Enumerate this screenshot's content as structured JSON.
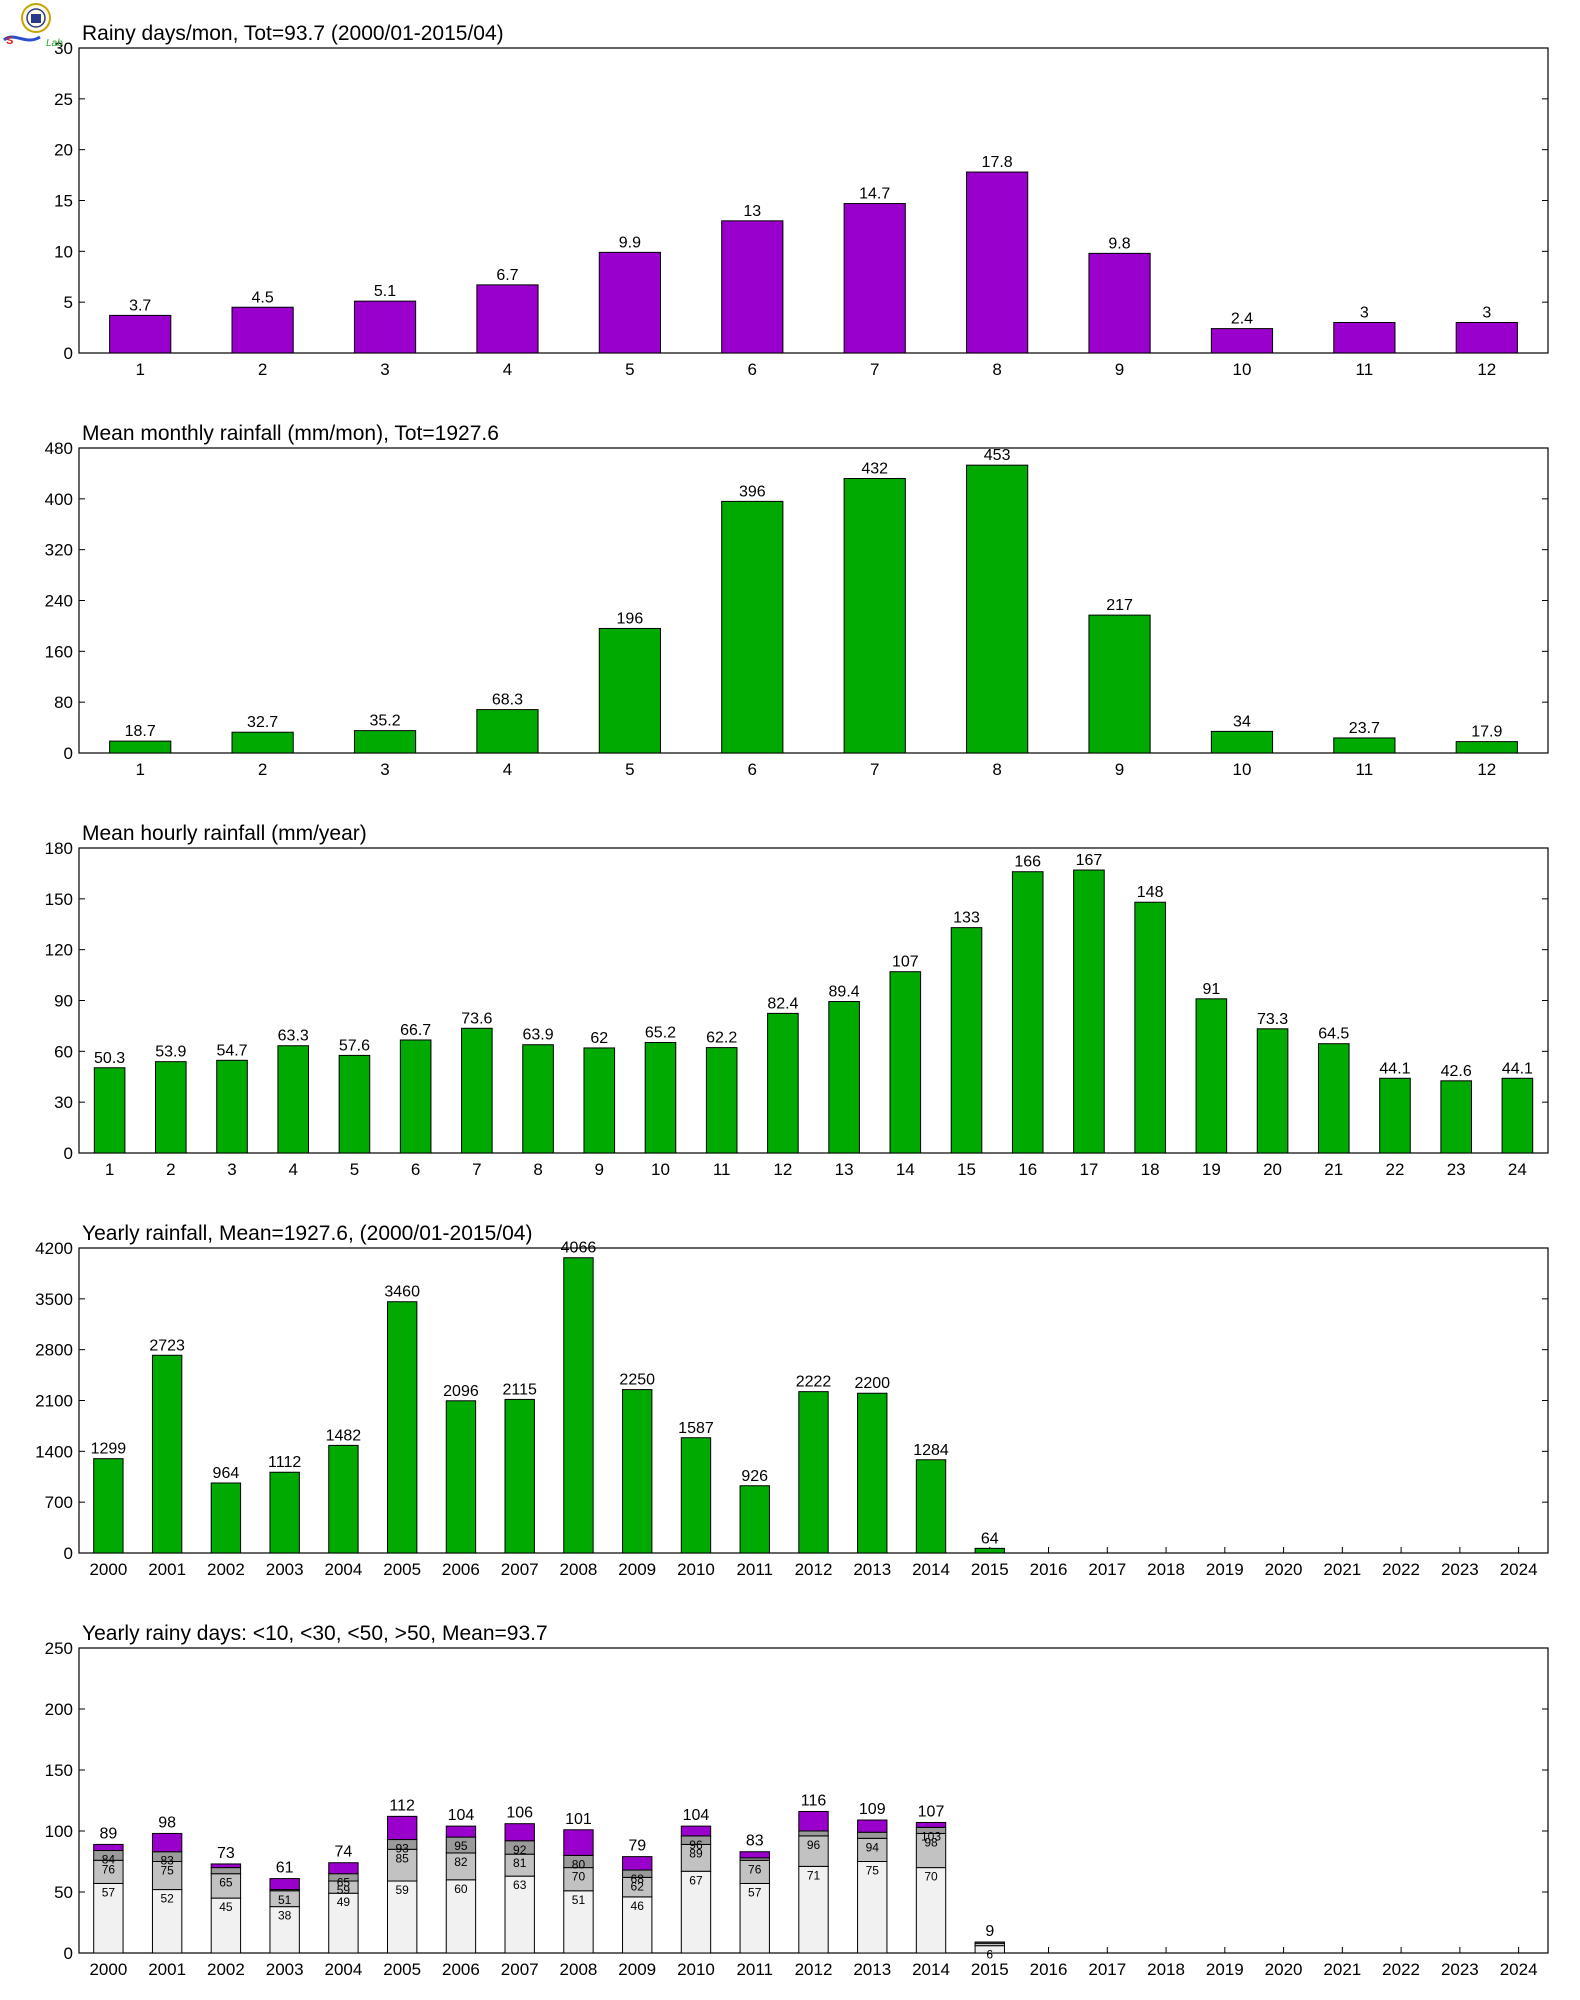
{
  "logo": {
    "text": "Lab"
  },
  "colors": {
    "purple": "#9900cc",
    "green": "#00aa00",
    "gray_dark": "#9a9a9a",
    "gray_mid": "#c2c2c2",
    "gray_light": "#f1f1f1",
    "axis": "#000000"
  },
  "chart_data": [
    {
      "type": "bar",
      "title": "Rainy days/mon, Tot=93.7 (2000/01-2015/04)",
      "categories": [
        "1",
        "2",
        "3",
        "4",
        "5",
        "6",
        "7",
        "8",
        "9",
        "10",
        "11",
        "12"
      ],
      "values": [
        3.7,
        4.5,
        5.1,
        6.7,
        9.9,
        13,
        14.7,
        17.8,
        9.8,
        2.4,
        3,
        3
      ],
      "labels": [
        "3.7",
        "4.5",
        "5.1",
        "6.7",
        "9.9",
        "13",
        "14.7",
        "17.8",
        "9.8",
        "2.4",
        "3",
        "3"
      ],
      "ylim": [
        0,
        30
      ],
      "yticks": [
        "0",
        "5",
        "10",
        "15",
        "20",
        "25",
        "30"
      ],
      "color": "#9900cc",
      "grid": false
    },
    {
      "type": "bar",
      "title": "Mean monthly rainfall (mm/mon), Tot=1927.6",
      "categories": [
        "1",
        "2",
        "3",
        "4",
        "5",
        "6",
        "7",
        "8",
        "9",
        "10",
        "11",
        "12"
      ],
      "values": [
        18.7,
        32.7,
        35.2,
        68.3,
        196,
        396,
        432,
        453,
        217,
        34,
        23.7,
        17.9
      ],
      "labels": [
        "18.7",
        "32.7",
        "35.2",
        "68.3",
        "196",
        "396",
        "432",
        "453",
        "217",
        "34",
        "23.7",
        "17.9"
      ],
      "ylim": [
        0,
        480
      ],
      "yticks": [
        "0",
        "80",
        "160",
        "240",
        "320",
        "400",
        "480"
      ],
      "color": "#00aa00",
      "grid": false
    },
    {
      "type": "bar",
      "title": "Mean hourly rainfall (mm/year)",
      "categories": [
        "1",
        "2",
        "3",
        "4",
        "5",
        "6",
        "7",
        "8",
        "9",
        "10",
        "11",
        "12",
        "13",
        "14",
        "15",
        "16",
        "17",
        "18",
        "19",
        "20",
        "21",
        "22",
        "23",
        "24"
      ],
      "values": [
        50.3,
        53.9,
        54.7,
        63.3,
        57.6,
        66.7,
        73.6,
        63.9,
        62,
        65.2,
        62.2,
        82.4,
        89.4,
        107,
        133,
        166,
        167,
        148,
        91,
        73.3,
        64.5,
        44.1,
        42.6,
        44.1
      ],
      "labels": [
        "50.3",
        "53.9",
        "54.7",
        "63.3",
        "57.6",
        "66.7",
        "73.6",
        "63.9",
        "62",
        "65.2",
        "62.2",
        "82.4",
        "89.4",
        "107",
        "133",
        "166",
        "167",
        "148",
        "91",
        "73.3",
        "64.5",
        "44.1",
        "42.6",
        "44.1"
      ],
      "ylim": [
        0,
        180
      ],
      "yticks": [
        "0",
        "30",
        "60",
        "90",
        "120",
        "150",
        "180"
      ],
      "color": "#00aa00",
      "grid": false
    },
    {
      "type": "bar",
      "title": "Yearly rainfall, Mean=1927.6, (2000/01-2015/04)",
      "categories": [
        "2000",
        "2001",
        "2002",
        "2003",
        "2004",
        "2005",
        "2006",
        "2007",
        "2008",
        "2009",
        "2010",
        "2011",
        "2012",
        "2013",
        "2014",
        "2015",
        "2016",
        "2017",
        "2018",
        "2019",
        "2020",
        "2021",
        "2022",
        "2023",
        "2024"
      ],
      "values": [
        1299,
        2723,
        964,
        1112,
        1482,
        3460,
        2096,
        2115,
        4066,
        2250,
        1587,
        926,
        2222,
        2200,
        1284,
        64,
        null,
        null,
        null,
        null,
        null,
        null,
        null,
        null,
        null
      ],
      "labels": [
        "1299",
        "2723",
        "964",
        "1112",
        "1482",
        "3460",
        "2096",
        "2115",
        "4066",
        "2250",
        "1587",
        "926",
        "2222",
        "2200",
        "1284",
        "64",
        "",
        "",
        "",
        "",
        "",
        "",
        "",
        "",
        ""
      ],
      "ylim": [
        0,
        4200
      ],
      "yticks": [
        "0",
        "700",
        "1400",
        "2100",
        "2800",
        "3500",
        "4200"
      ],
      "color": "#00aa00",
      "grid": false
    },
    {
      "type": "bar",
      "stacked": true,
      "title": "Yearly rainy days: <10, <30, <50, >50, Mean=93.7",
      "categories": [
        "2000",
        "2001",
        "2002",
        "2003",
        "2004",
        "2005",
        "2006",
        "2007",
        "2008",
        "2009",
        "2010",
        "2011",
        "2012",
        "2013",
        "2014",
        "2015",
        "2016",
        "2017",
        "2018",
        "2019",
        "2020",
        "2021",
        "2022",
        "2023",
        "2024"
      ],
      "lt10": [
        57,
        52,
        45,
        38,
        49,
        59,
        60,
        63,
        51,
        46,
        67,
        57,
        71,
        75,
        70,
        6,
        null,
        null,
        null,
        null,
        null,
        null,
        null,
        null,
        null
      ],
      "lt30": [
        76,
        75,
        65,
        51,
        59,
        85,
        82,
        81,
        70,
        62,
        89,
        76,
        96,
        94,
        98,
        8,
        null,
        null,
        null,
        null,
        null,
        null,
        null,
        null,
        null
      ],
      "lt50": [
        84,
        83,
        70,
        52,
        65,
        93,
        95,
        92,
        80,
        68,
        96,
        78,
        100,
        99,
        103,
        9,
        null,
        null,
        null,
        null,
        null,
        null,
        null,
        null,
        null
      ],
      "total": [
        89,
        98,
        73,
        61,
        74,
        112,
        104,
        106,
        101,
        79,
        104,
        83,
        116,
        109,
        107,
        9,
        null,
        null,
        null,
        null,
        null,
        null,
        null,
        null,
        null
      ],
      "lt10_labels": [
        "57",
        "52",
        "45",
        "38",
        "49",
        "59",
        "60",
        "63",
        "51",
        "46",
        "67",
        "57",
        "71",
        "75",
        "70",
        "6",
        "",
        "",
        "",
        "",
        "",
        "",
        "",
        "",
        ""
      ],
      "lt30_labels": [
        "76",
        "75",
        "65",
        "51",
        "59",
        "85",
        "82",
        "81",
        "70",
        "62",
        "89",
        "76",
        "96",
        "94",
        "98",
        "",
        "",
        "",
        "",
        "",
        "",
        "",
        "",
        "",
        ""
      ],
      "lt50_labels": [
        "84",
        "83",
        "",
        "",
        "65",
        "93",
        "95",
        "92",
        "80",
        "68",
        "96",
        "",
        "",
        "",
        "103",
        "",
        "",
        "",
        "",
        "",
        "",
        "",
        "",
        "",
        ""
      ],
      "total_labels": [
        "89",
        "98",
        "73",
        "61",
        "74",
        "112",
        "104",
        "106",
        "101",
        "79",
        "104",
        "83",
        "116",
        "109",
        "107",
        "9",
        "",
        "",
        "",
        "",
        "",
        "",
        "",
        "",
        ""
      ],
      "ylim": [
        0,
        250
      ],
      "yticks": [
        "0",
        "50",
        "100",
        "150",
        "200",
        "250"
      ],
      "colors": [
        "#f1f1f1",
        "#c2c2c2",
        "#9a9a9a",
        "#9900cc"
      ],
      "grid": false
    }
  ]
}
